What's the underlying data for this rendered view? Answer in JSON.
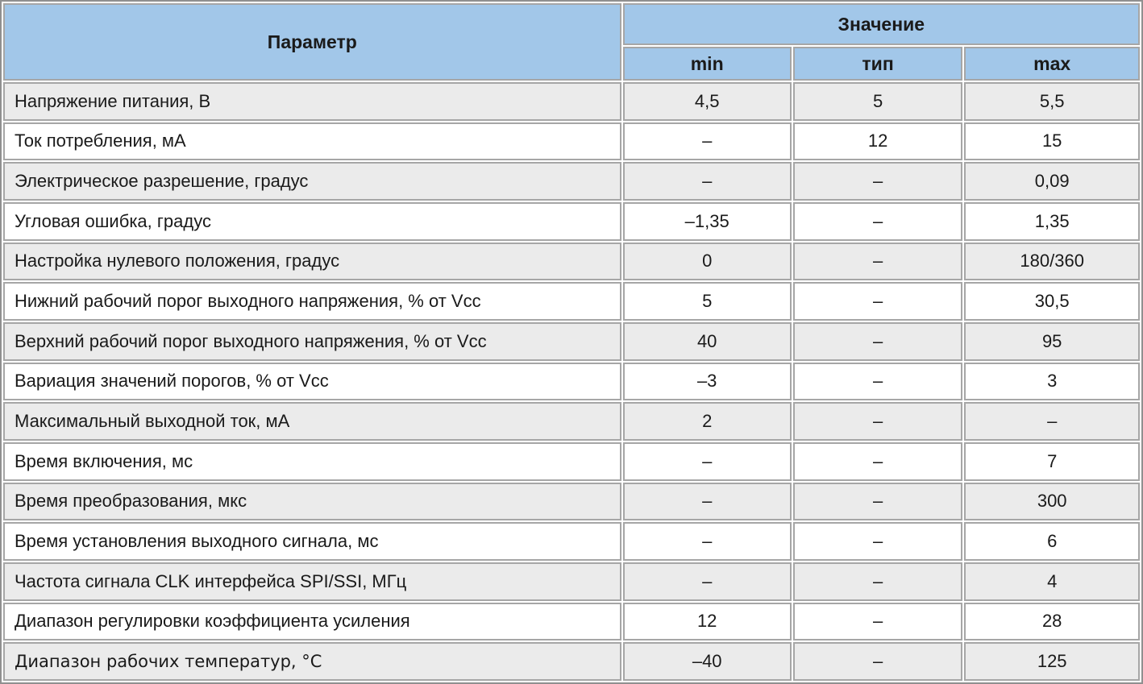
{
  "table": {
    "header": {
      "parameter": "Параметр",
      "value_group": "Значение",
      "min": "min",
      "typ": "тип",
      "max": "max"
    },
    "rows": [
      {
        "param": "Напряжение питания, В",
        "min": "4,5",
        "typ": "5",
        "max": "5,5"
      },
      {
        "param": "Ток потребления, мА",
        "min": "–",
        "typ": "12",
        "max": "15"
      },
      {
        "param": "Электрическое разрешение, градус",
        "min": "–",
        "typ": "–",
        "max": "0,09"
      },
      {
        "param": "Угловая ошибка, градус",
        "min": "–1,35",
        "typ": "–",
        "max": "1,35"
      },
      {
        "param": "Настройка нулевого положения, градус",
        "min": "0",
        "typ": "–",
        "max": "180/360"
      },
      {
        "param": "Нижний рабочий порог выходного напряжения, % от Vcc",
        "min": "5",
        "typ": "–",
        "max": "30,5"
      },
      {
        "param": "Верхний рабочий порог выходного напряжения, % от Vcc",
        "min": "40",
        "typ": "–",
        "max": "95"
      },
      {
        "param": "Вариация значений порогов, % от Vcc",
        "min": "–3",
        "typ": "–",
        "max": "3"
      },
      {
        "param": "Максимальный выходной ток, мА",
        "min": "2",
        "typ": "–",
        "max": "–"
      },
      {
        "param": "Время включения, мс",
        "min": "–",
        "typ": "–",
        "max": "7"
      },
      {
        "param": "Время преобразования, мкс",
        "min": "–",
        "typ": "–",
        "max": "300"
      },
      {
        "param": "Время установления выходного сигнала, мс",
        "min": "–",
        "typ": "–",
        "max": "6"
      },
      {
        "param": "Частота сигнала CLK интерфейса SPI/SSI, МГц",
        "min": "–",
        "typ": "–",
        "max": "4"
      },
      {
        "param": "Диапазон регулировки коэффициента усиления",
        "min": "12",
        "typ": "–",
        "max": "28"
      },
      {
        "param": "Диапазон рабочих температур, °С",
        "min": "–40",
        "typ": "–",
        "max": "125"
      }
    ]
  },
  "colors": {
    "header_bg": "#a2c7e9",
    "row_alt_bg": "#ebebeb",
    "row_bg": "#ffffff",
    "border": "#a6a6a6",
    "outer_border": "#909090",
    "text": "#1a1a1a"
  }
}
